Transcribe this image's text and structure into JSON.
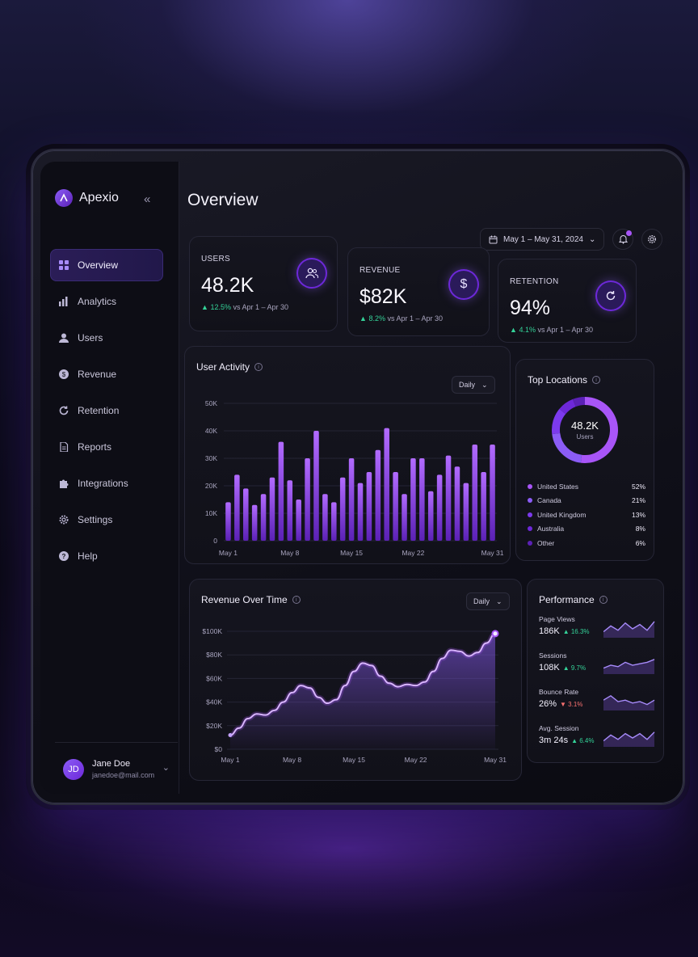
{
  "app": {
    "name": "Apexio"
  },
  "sidebar": {
    "items": [
      {
        "label": "Overview",
        "icon": "grid-icon",
        "active": true
      },
      {
        "label": "Analytics",
        "icon": "bar-chart-icon"
      },
      {
        "label": "Users",
        "icon": "user-icon"
      },
      {
        "label": "Revenue",
        "icon": "dollar-icon"
      },
      {
        "label": "Retention",
        "icon": "refresh-icon"
      },
      {
        "label": "Reports",
        "icon": "document-icon"
      },
      {
        "label": "Integrations",
        "icon": "puzzle-icon"
      },
      {
        "label": "Settings",
        "icon": "gear-icon"
      },
      {
        "label": "Help",
        "icon": "help-icon"
      }
    ],
    "user": {
      "initials": "JD",
      "name": "Jane Doe",
      "email": "janedoe@mail.com"
    }
  },
  "header": {
    "title": "Overview",
    "date_range": "May 1 – May 31, 2024"
  },
  "kpis": [
    {
      "label": "USERS",
      "value": "48.2K",
      "delta": "12.5%",
      "compare": "vs Apr 1 – Apr 30",
      "icon": "users-icon"
    },
    {
      "label": "REVENUE",
      "value": "$82K",
      "delta": "8.2%",
      "compare": "vs Apr 1 – Apr 30",
      "icon": "dollar-icon"
    },
    {
      "label": "RETENTION",
      "value": "94%",
      "delta": "4.1%",
      "compare": "vs Apr 1 – Apr 30",
      "icon": "refresh-icon"
    }
  ],
  "user_activity": {
    "title": "User Activity",
    "period": "Daily"
  },
  "top_locations": {
    "title": "Top Locations",
    "center_value": "48.2K",
    "center_label": "Users",
    "items": [
      {
        "name": "United States",
        "pct": "52%",
        "color": "#a855f7"
      },
      {
        "name": "Canada",
        "pct": "21%",
        "color": "#8b5cf6"
      },
      {
        "name": "United Kingdom",
        "pct": "13%",
        "color": "#7c3aed"
      },
      {
        "name": "Australia",
        "pct": "8%",
        "color": "#6d28d9"
      },
      {
        "name": "Other",
        "pct": "6%",
        "color": "#5b21b6"
      }
    ]
  },
  "revenue_over_time": {
    "title": "Revenue Over Time",
    "period": "Daily"
  },
  "performance": {
    "title": "Performance",
    "items": [
      {
        "label": "Page Views",
        "value": "186K",
        "delta": "16.3%",
        "direction": "up"
      },
      {
        "label": "Sessions",
        "value": "108K",
        "delta": "9.7%",
        "direction": "up"
      },
      {
        "label": "Bounce Rate",
        "value": "26%",
        "delta": "3.1%",
        "direction": "down"
      },
      {
        "label": "Avg. Session",
        "value": "3m 24s",
        "delta": "6.4%",
        "direction": "up"
      }
    ]
  },
  "colors": {
    "accent": "#8b5cf6",
    "positive": "#34d399",
    "negative": "#f87171"
  },
  "chart_data": [
    {
      "type": "bar",
      "title": "User Activity",
      "x": [
        "May 1",
        "May 2",
        "May 3",
        "May 4",
        "May 5",
        "May 6",
        "May 7",
        "May 8",
        "May 9",
        "May 10",
        "May 11",
        "May 12",
        "May 13",
        "May 14",
        "May 15",
        "May 16",
        "May 17",
        "May 18",
        "May 19",
        "May 20",
        "May 21",
        "May 22",
        "May 23",
        "May 24",
        "May 25",
        "May 26",
        "May 27",
        "May 28",
        "May 29",
        "May 30",
        "May 31"
      ],
      "x_tick_labels": [
        "May 1",
        "May 8",
        "May 15",
        "May 22",
        "May 31"
      ],
      "values": [
        14,
        24,
        19,
        13,
        17,
        23,
        36,
        22,
        15,
        30,
        40,
        17,
        14,
        23,
        30,
        21,
        25,
        33,
        41,
        25,
        17,
        30,
        30,
        18,
        24,
        31,
        27,
        21,
        35,
        25,
        35
      ],
      "ylim": [
        0,
        50
      ],
      "y_tick_labels": [
        "0",
        "10K",
        "20K",
        "30K",
        "40K",
        "50K"
      ],
      "grid": true
    },
    {
      "type": "area",
      "title": "Revenue Over Time",
      "x": [
        "May 1",
        "May 2",
        "May 3",
        "May 4",
        "May 5",
        "May 6",
        "May 7",
        "May 8",
        "May 9",
        "May 10",
        "May 11",
        "May 12",
        "May 13",
        "May 14",
        "May 15",
        "May 16",
        "May 17",
        "May 18",
        "May 19",
        "May 20",
        "May 21",
        "May 22",
        "May 23",
        "May 24",
        "May 25",
        "May 26",
        "May 27",
        "May 28",
        "May 29",
        "May 30",
        "May 31"
      ],
      "x_tick_labels": [
        "May 1",
        "May 8",
        "May 15",
        "May 22",
        "May 31"
      ],
      "values": [
        12,
        18,
        26,
        30,
        29,
        33,
        40,
        48,
        54,
        52,
        44,
        39,
        42,
        54,
        66,
        73,
        71,
        62,
        56,
        53,
        55,
        54,
        57,
        66,
        77,
        84,
        83,
        79,
        82,
        90,
        98
      ],
      "ylim": [
        0,
        100
      ],
      "y_tick_labels": [
        "$0",
        "$20K",
        "$40K",
        "$60K",
        "$80K",
        "$100K"
      ],
      "grid": true
    },
    {
      "type": "pie",
      "title": "Top Locations",
      "categories": [
        "United States",
        "Canada",
        "United Kingdom",
        "Australia",
        "Other"
      ],
      "values": [
        52,
        21,
        13,
        8,
        6
      ]
    }
  ]
}
